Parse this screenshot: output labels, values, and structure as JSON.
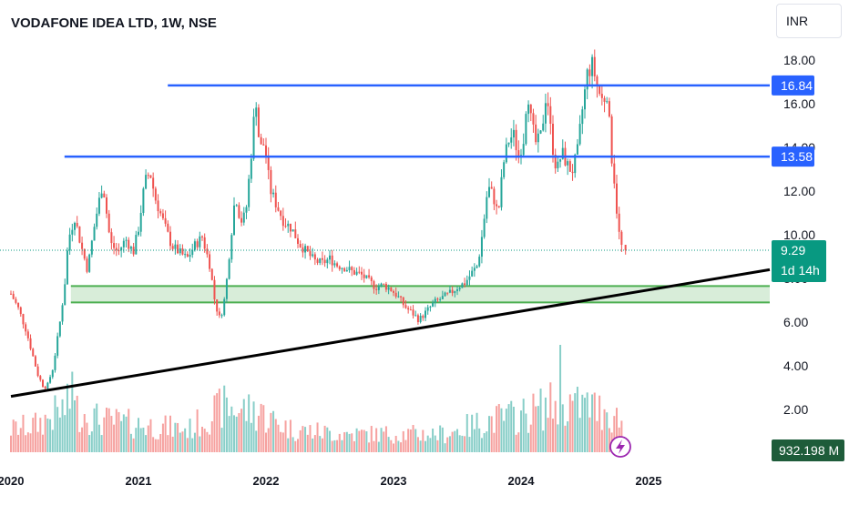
{
  "header": {
    "title": "VODAFONE IDEA LTD, 1W, NSE"
  },
  "currency": {
    "label": "INR"
  },
  "colors": {
    "up": "#26a69a",
    "down": "#ef5350",
    "level": "#2962ff",
    "zone": "#4caf50",
    "trend": "#000000",
    "tag_bg": "#2962ff",
    "price_bg": "#089981",
    "volume_bg": "#1e5c3a",
    "bolt": "#9c27b0"
  },
  "bolt_icon": "lightning-bolt-icon",
  "chart_data": {
    "type": "candlestick",
    "title": "VODAFONE IDEA LTD, 1W, NSE",
    "xlabel": "",
    "ylabel": "",
    "ylim": [
      2.0,
      19.5
    ],
    "yticks": [
      "2.00",
      "4.00",
      "6.00",
      "8.00",
      "10.00",
      "12.00",
      "14.00",
      "16.00",
      "18.00"
    ],
    "xticks": [
      "2020",
      "2021",
      "2022",
      "2023",
      "2024",
      "2025"
    ],
    "x_range": [
      2020.0,
      2025.95
    ],
    "grid": false,
    "last_price": {
      "value": 9.29,
      "label": "9.29",
      "countdown": "1d 14h"
    },
    "volume_label": "932.198 M",
    "horizontal_levels": [
      {
        "value": 16.84,
        "label": "16.84",
        "from": 2021.23
      },
      {
        "value": 13.58,
        "label": "13.58",
        "from": 2020.42
      }
    ],
    "demand_zone": {
      "top": 7.65,
      "bottom": 6.9,
      "from": 2020.47
    },
    "trendline": {
      "start": [
        2020.0,
        2.6
      ],
      "end": [
        2025.95,
        8.4
      ]
    },
    "price_path": [
      [
        2020.0,
        7.3
      ],
      [
        2020.06,
        6.6
      ],
      [
        2020.12,
        5.6
      ],
      [
        2020.17,
        4.5
      ],
      [
        2020.21,
        3.6
      ],
      [
        2020.25,
        3.1
      ],
      [
        2020.28,
        3.0
      ],
      [
        2020.33,
        3.9
      ],
      [
        2020.38,
        5.8
      ],
      [
        2020.42,
        7.6
      ],
      [
        2020.45,
        9.8
      ],
      [
        2020.5,
        10.8
      ],
      [
        2020.55,
        9.5
      ],
      [
        2020.6,
        8.4
      ],
      [
        2020.66,
        10.6
      ],
      [
        2020.72,
        12.4
      ],
      [
        2020.78,
        9.6
      ],
      [
        2020.84,
        9.2
      ],
      [
        2020.9,
        9.8
      ],
      [
        2020.96,
        9.2
      ],
      [
        2021.0,
        10.3
      ],
      [
        2021.05,
        12.4
      ],
      [
        2021.09,
        12.9
      ],
      [
        2021.13,
        11.7
      ],
      [
        2021.2,
        10.5
      ],
      [
        2021.26,
        9.5
      ],
      [
        2021.32,
        9.2
      ],
      [
        2021.38,
        8.9
      ],
      [
        2021.44,
        9.5
      ],
      [
        2021.5,
        9.9
      ],
      [
        2021.56,
        8.6
      ],
      [
        2021.6,
        6.9
      ],
      [
        2021.64,
        6.1
      ],
      [
        2021.68,
        7.2
      ],
      [
        2021.72,
        9.6
      ],
      [
        2021.76,
        11.9
      ],
      [
        2021.8,
        10.6
      ],
      [
        2021.84,
        10.9
      ],
      [
        2021.88,
        13.4
      ],
      [
        2021.92,
        16.4
      ],
      [
        2021.95,
        13.9
      ],
      [
        2021.99,
        14.2
      ],
      [
        2022.03,
        12.1
      ],
      [
        2022.08,
        11.4
      ],
      [
        2022.14,
        10.6
      ],
      [
        2022.2,
        10.3
      ],
      [
        2022.26,
        9.6
      ],
      [
        2022.32,
        9.2
      ],
      [
        2022.38,
        8.8
      ],
      [
        2022.44,
        8.7
      ],
      [
        2022.5,
        8.9
      ],
      [
        2022.56,
        8.6
      ],
      [
        2022.62,
        8.5
      ],
      [
        2022.68,
        8.3
      ],
      [
        2022.74,
        8.2
      ],
      [
        2022.8,
        7.9
      ],
      [
        2022.86,
        7.6
      ],
      [
        2022.92,
        7.7
      ],
      [
        2022.98,
        7.5
      ],
      [
        2023.03,
        7.2
      ],
      [
        2023.09,
        6.7
      ],
      [
        2023.15,
        6.4
      ],
      [
        2023.2,
        6.1
      ],
      [
        2023.26,
        6.5
      ],
      [
        2023.32,
        6.9
      ],
      [
        2023.38,
        7.1
      ],
      [
        2023.44,
        7.3
      ],
      [
        2023.5,
        7.6
      ],
      [
        2023.56,
        7.8
      ],
      [
        2023.62,
        8.3
      ],
      [
        2023.66,
        8.6
      ],
      [
        2023.7,
        10.2
      ],
      [
        2023.74,
        12.2
      ],
      [
        2023.78,
        11.8
      ],
      [
        2023.82,
        10.9
      ],
      [
        2023.86,
        13.2
      ],
      [
        2023.9,
        14.3
      ],
      [
        2023.94,
        14.6
      ],
      [
        2023.98,
        13.6
      ],
      [
        2024.02,
        14.4
      ],
      [
        2024.05,
        16.8
      ],
      [
        2024.08,
        15.1
      ],
      [
        2024.12,
        14.1
      ],
      [
        2024.16,
        14.6
      ],
      [
        2024.2,
        16.7
      ],
      [
        2024.24,
        14.3
      ],
      [
        2024.28,
        12.9
      ],
      [
        2024.32,
        13.8
      ],
      [
        2024.36,
        13.2
      ],
      [
        2024.4,
        12.9
      ],
      [
        2024.44,
        13.7
      ],
      [
        2024.48,
        15.7
      ],
      [
        2024.52,
        17.4
      ],
      [
        2024.56,
        17.8
      ],
      [
        2024.6,
        16.7
      ],
      [
        2024.64,
        16.1
      ],
      [
        2024.68,
        16.6
      ],
      [
        2024.7,
        14.1
      ],
      [
        2024.73,
        12.6
      ],
      [
        2024.76,
        10.4
      ],
      [
        2024.78,
        9.6
      ],
      [
        2024.8,
        9.29
      ]
    ],
    "volume_path": [
      [
        2020.0,
        0.25
      ],
      [
        2020.2,
        0.3
      ],
      [
        2020.45,
        0.5
      ],
      [
        2020.7,
        0.35
      ],
      [
        2021.0,
        0.3
      ],
      [
        2021.4,
        0.25
      ],
      [
        2021.65,
        0.5
      ],
      [
        2021.9,
        0.45
      ],
      [
        2022.2,
        0.25
      ],
      [
        2022.6,
        0.2
      ],
      [
        2023.0,
        0.2
      ],
      [
        2023.4,
        0.2
      ],
      [
        2023.75,
        0.35
      ],
      [
        2024.0,
        0.4
      ],
      [
        2024.3,
        0.55
      ],
      [
        2024.55,
        0.5
      ],
      [
        2024.8,
        0.35
      ]
    ],
    "volume_spikes": [
      [
        2020.49,
        0.75
      ],
      [
        2021.62,
        0.55
      ],
      [
        2021.96,
        0.45
      ],
      [
        2024.3,
        1.0
      ],
      [
        2024.43,
        0.55
      ],
      [
        2024.65,
        0.4
      ]
    ]
  }
}
